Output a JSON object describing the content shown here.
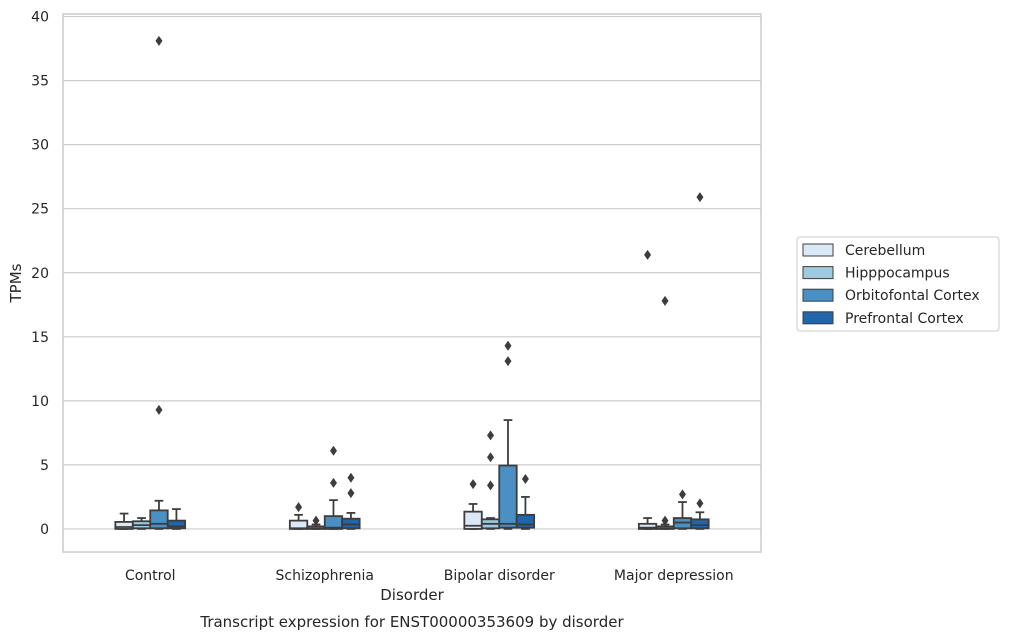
{
  "chart_data": {
    "type": "box",
    "title": "",
    "caption": "Transcript expression for ENST00000353609 by disorder",
    "xlabel": "Disorder",
    "ylabel": "TPMs",
    "ylim": [
      -1.8,
      40.2
    ],
    "yticks": [
      0,
      5,
      10,
      15,
      20,
      25,
      30,
      35,
      40
    ],
    "grid": "horizontal",
    "legend_position": "right",
    "categories": [
      "Control",
      "Schizophrenia",
      "Bipolar disorder",
      "Major depression"
    ],
    "series": [
      {
        "name": "Cerebellum",
        "color": "#dbe9f6",
        "boxes": [
          {
            "whisker_low": 0.0,
            "q1": 0.0,
            "median": 0.15,
            "q3": 0.55,
            "whisker_high": 1.2,
            "outliers": []
          },
          {
            "whisker_low": 0.0,
            "q1": 0.0,
            "median": 0.05,
            "q3": 0.65,
            "whisker_high": 1.1,
            "outliers": [
              1.7
            ]
          },
          {
            "whisker_low": 0.0,
            "q1": 0.0,
            "median": 0.25,
            "q3": 1.35,
            "whisker_high": 1.95,
            "outliers": [
              3.5
            ]
          },
          {
            "whisker_low": 0.0,
            "q1": 0.0,
            "median": 0.1,
            "q3": 0.4,
            "whisker_high": 0.85,
            "outliers": [
              21.4
            ]
          }
        ]
      },
      {
        "name": "Hipppocampus",
        "color": "#9ecae1",
        "boxes": [
          {
            "whisker_low": 0.0,
            "q1": 0.05,
            "median": 0.3,
            "q3": 0.6,
            "whisker_high": 0.85,
            "outliers": []
          },
          {
            "whisker_low": 0.0,
            "q1": 0.0,
            "median": 0.05,
            "q3": 0.2,
            "whisker_high": 0.35,
            "outliers": [
              0.65
            ]
          },
          {
            "whisker_low": 0.0,
            "q1": 0.05,
            "median": 0.4,
            "q3": 0.75,
            "whisker_high": 0.85,
            "outliers": [
              7.3,
              5.6,
              3.4
            ]
          },
          {
            "whisker_low": 0.0,
            "q1": 0.0,
            "median": 0.05,
            "q3": 0.2,
            "whisker_high": 0.35,
            "outliers": [
              17.8,
              0.65
            ]
          }
        ]
      },
      {
        "name": "Orbitofontal Cortex",
        "color": "#4a90c4",
        "boxes": [
          {
            "whisker_low": 0.0,
            "q1": 0.05,
            "median": 0.4,
            "q3": 1.45,
            "whisker_high": 2.2,
            "outliers": [
              38.1,
              9.3
            ]
          },
          {
            "whisker_low": 0.0,
            "q1": 0.0,
            "median": 0.1,
            "q3": 1.0,
            "whisker_high": 2.25,
            "outliers": [
              6.1,
              3.6
            ]
          },
          {
            "whisker_low": 0.0,
            "q1": 0.1,
            "median": 0.4,
            "q3": 4.95,
            "whisker_high": 8.5,
            "outliers": [
              14.3,
              13.1
            ]
          },
          {
            "whisker_low": 0.0,
            "q1": 0.05,
            "median": 0.5,
            "q3": 0.85,
            "whisker_high": 2.1,
            "outliers": [
              2.7
            ]
          }
        ]
      },
      {
        "name": "Prefrontal Cortex",
        "color": "#2166ac",
        "boxes": [
          {
            "whisker_low": 0.0,
            "q1": 0.05,
            "median": 0.2,
            "q3": 0.65,
            "whisker_high": 1.55,
            "outliers": []
          },
          {
            "whisker_low": 0.0,
            "q1": 0.05,
            "median": 0.35,
            "q3": 0.8,
            "whisker_high": 1.25,
            "outliers": [
              4.0,
              2.8
            ]
          },
          {
            "whisker_low": 0.0,
            "q1": 0.1,
            "median": 0.35,
            "q3": 1.1,
            "whisker_high": 2.5,
            "outliers": [
              3.9
            ]
          },
          {
            "whisker_low": 0.0,
            "q1": 0.05,
            "median": 0.3,
            "q3": 0.75,
            "whisker_high": 1.3,
            "outliers": [
              25.9,
              2.0
            ]
          }
        ]
      }
    ]
  }
}
